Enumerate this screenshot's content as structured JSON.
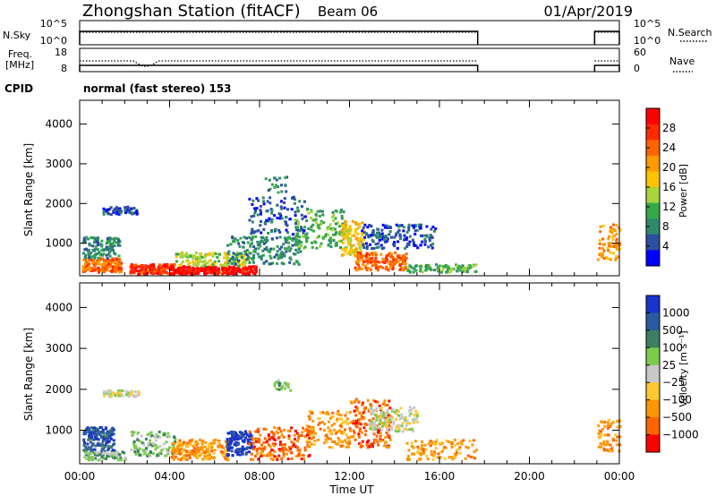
{
  "header": {
    "station": "Zhongshan Station (fitACF)",
    "beam": "Beam 06",
    "date": "01/Apr/2019",
    "cpid_label": "CPID",
    "cpid_text": "normal (fast stereo) 153"
  },
  "chart_data": [
    {
      "type": "line",
      "title": "N.Sky / N.Search",
      "ylabel_left": "N.Sky",
      "ylabel_right": "N.Search",
      "left_ticks": [
        "10^5",
        "10^0"
      ],
      "right_ticks": [
        "10^5",
        "10^0"
      ],
      "segments": [
        [
          0.0,
          17.7
        ],
        [
          22.9,
          24.0
        ]
      ]
    },
    {
      "type": "line",
      "title": "Freq. / Nave",
      "ylabel_left": [
        "Freq.",
        "[MHz]"
      ],
      "ylabel_right": "Nave",
      "left_ticks": [
        "18",
        "8"
      ],
      "right_ticks": [
        "60",
        "0"
      ],
      "segments": [
        [
          0.0,
          17.7
        ],
        [
          22.9,
          24.0
        ]
      ]
    },
    {
      "type": "heatmap",
      "ylabel": "Slant Range [km]",
      "yticks": [
        "4000",
        "3000",
        "2000",
        "1000"
      ],
      "yvals": [
        4000,
        3000,
        2000,
        1000
      ],
      "ylim": [
        180,
        4600
      ],
      "xlim": [
        0,
        24
      ],
      "colorbar_label": "Power [dB]",
      "colorbar_ticks": [
        "28",
        "24",
        "20",
        "16",
        "12",
        "8",
        "4"
      ],
      "colorbar_colors": [
        "#ff0000",
        "#ff2a00",
        "#ff6400",
        "#ff9a00",
        "#ffc400",
        "#a8d43c",
        "#36a84a",
        "#2e8a6a",
        "#2c4fa0",
        "#0000ff"
      ]
    },
    {
      "type": "heatmap",
      "ylabel": "Slant Range [km]",
      "yticks": [
        "4000",
        "3000",
        "2000",
        "1000"
      ],
      "yvals": [
        4000,
        3000,
        2000,
        1000
      ],
      "ylim": [
        180,
        4600
      ],
      "xlim": [
        0,
        24
      ],
      "xticks": [
        "00:00",
        "04:00",
        "08:00",
        "12:00",
        "16:00",
        "20:00",
        "00:00"
      ],
      "xlabel": "Time UT",
      "colorbar_label": "Velocity [m s⁻¹]",
      "colorbar_ticks": [
        "1000",
        "500",
        "100",
        "25",
        "−25",
        "−100",
        "−500",
        "−1000"
      ],
      "colorbar_colors": [
        "#1a33c8",
        "#2c5aa0",
        "#3c7f64",
        "#7ccb4c",
        "#c8c8c8",
        "#ffc832",
        "#ff9600",
        "#ff6400",
        "#ff0000"
      ]
    }
  ]
}
